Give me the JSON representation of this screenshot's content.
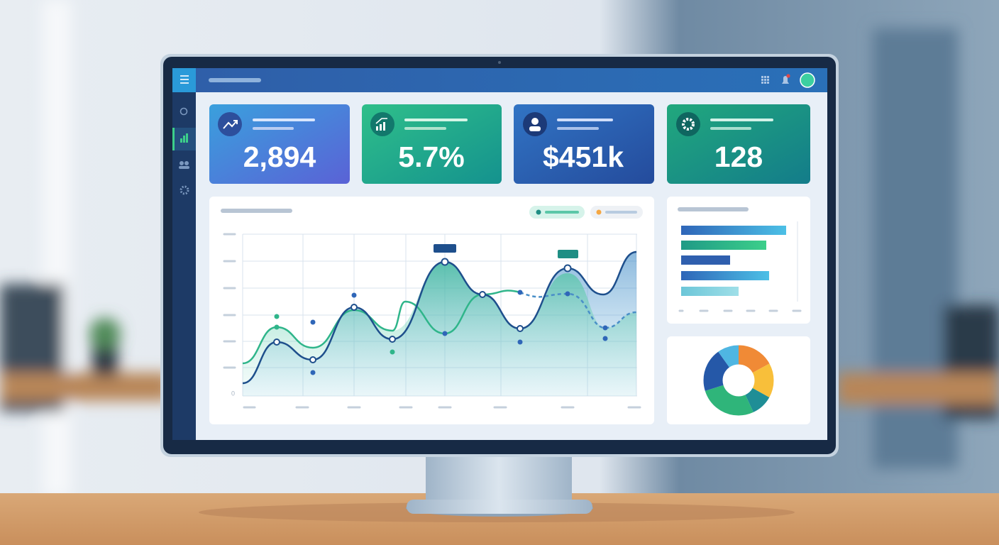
{
  "kpi_cards": [
    {
      "value": "2,894"
    },
    {
      "value": "5.7%"
    },
    {
      "value": "$451k"
    },
    {
      "value": "128"
    }
  ],
  "main_chart": {
    "y_axis_origin": 0
  }
}
